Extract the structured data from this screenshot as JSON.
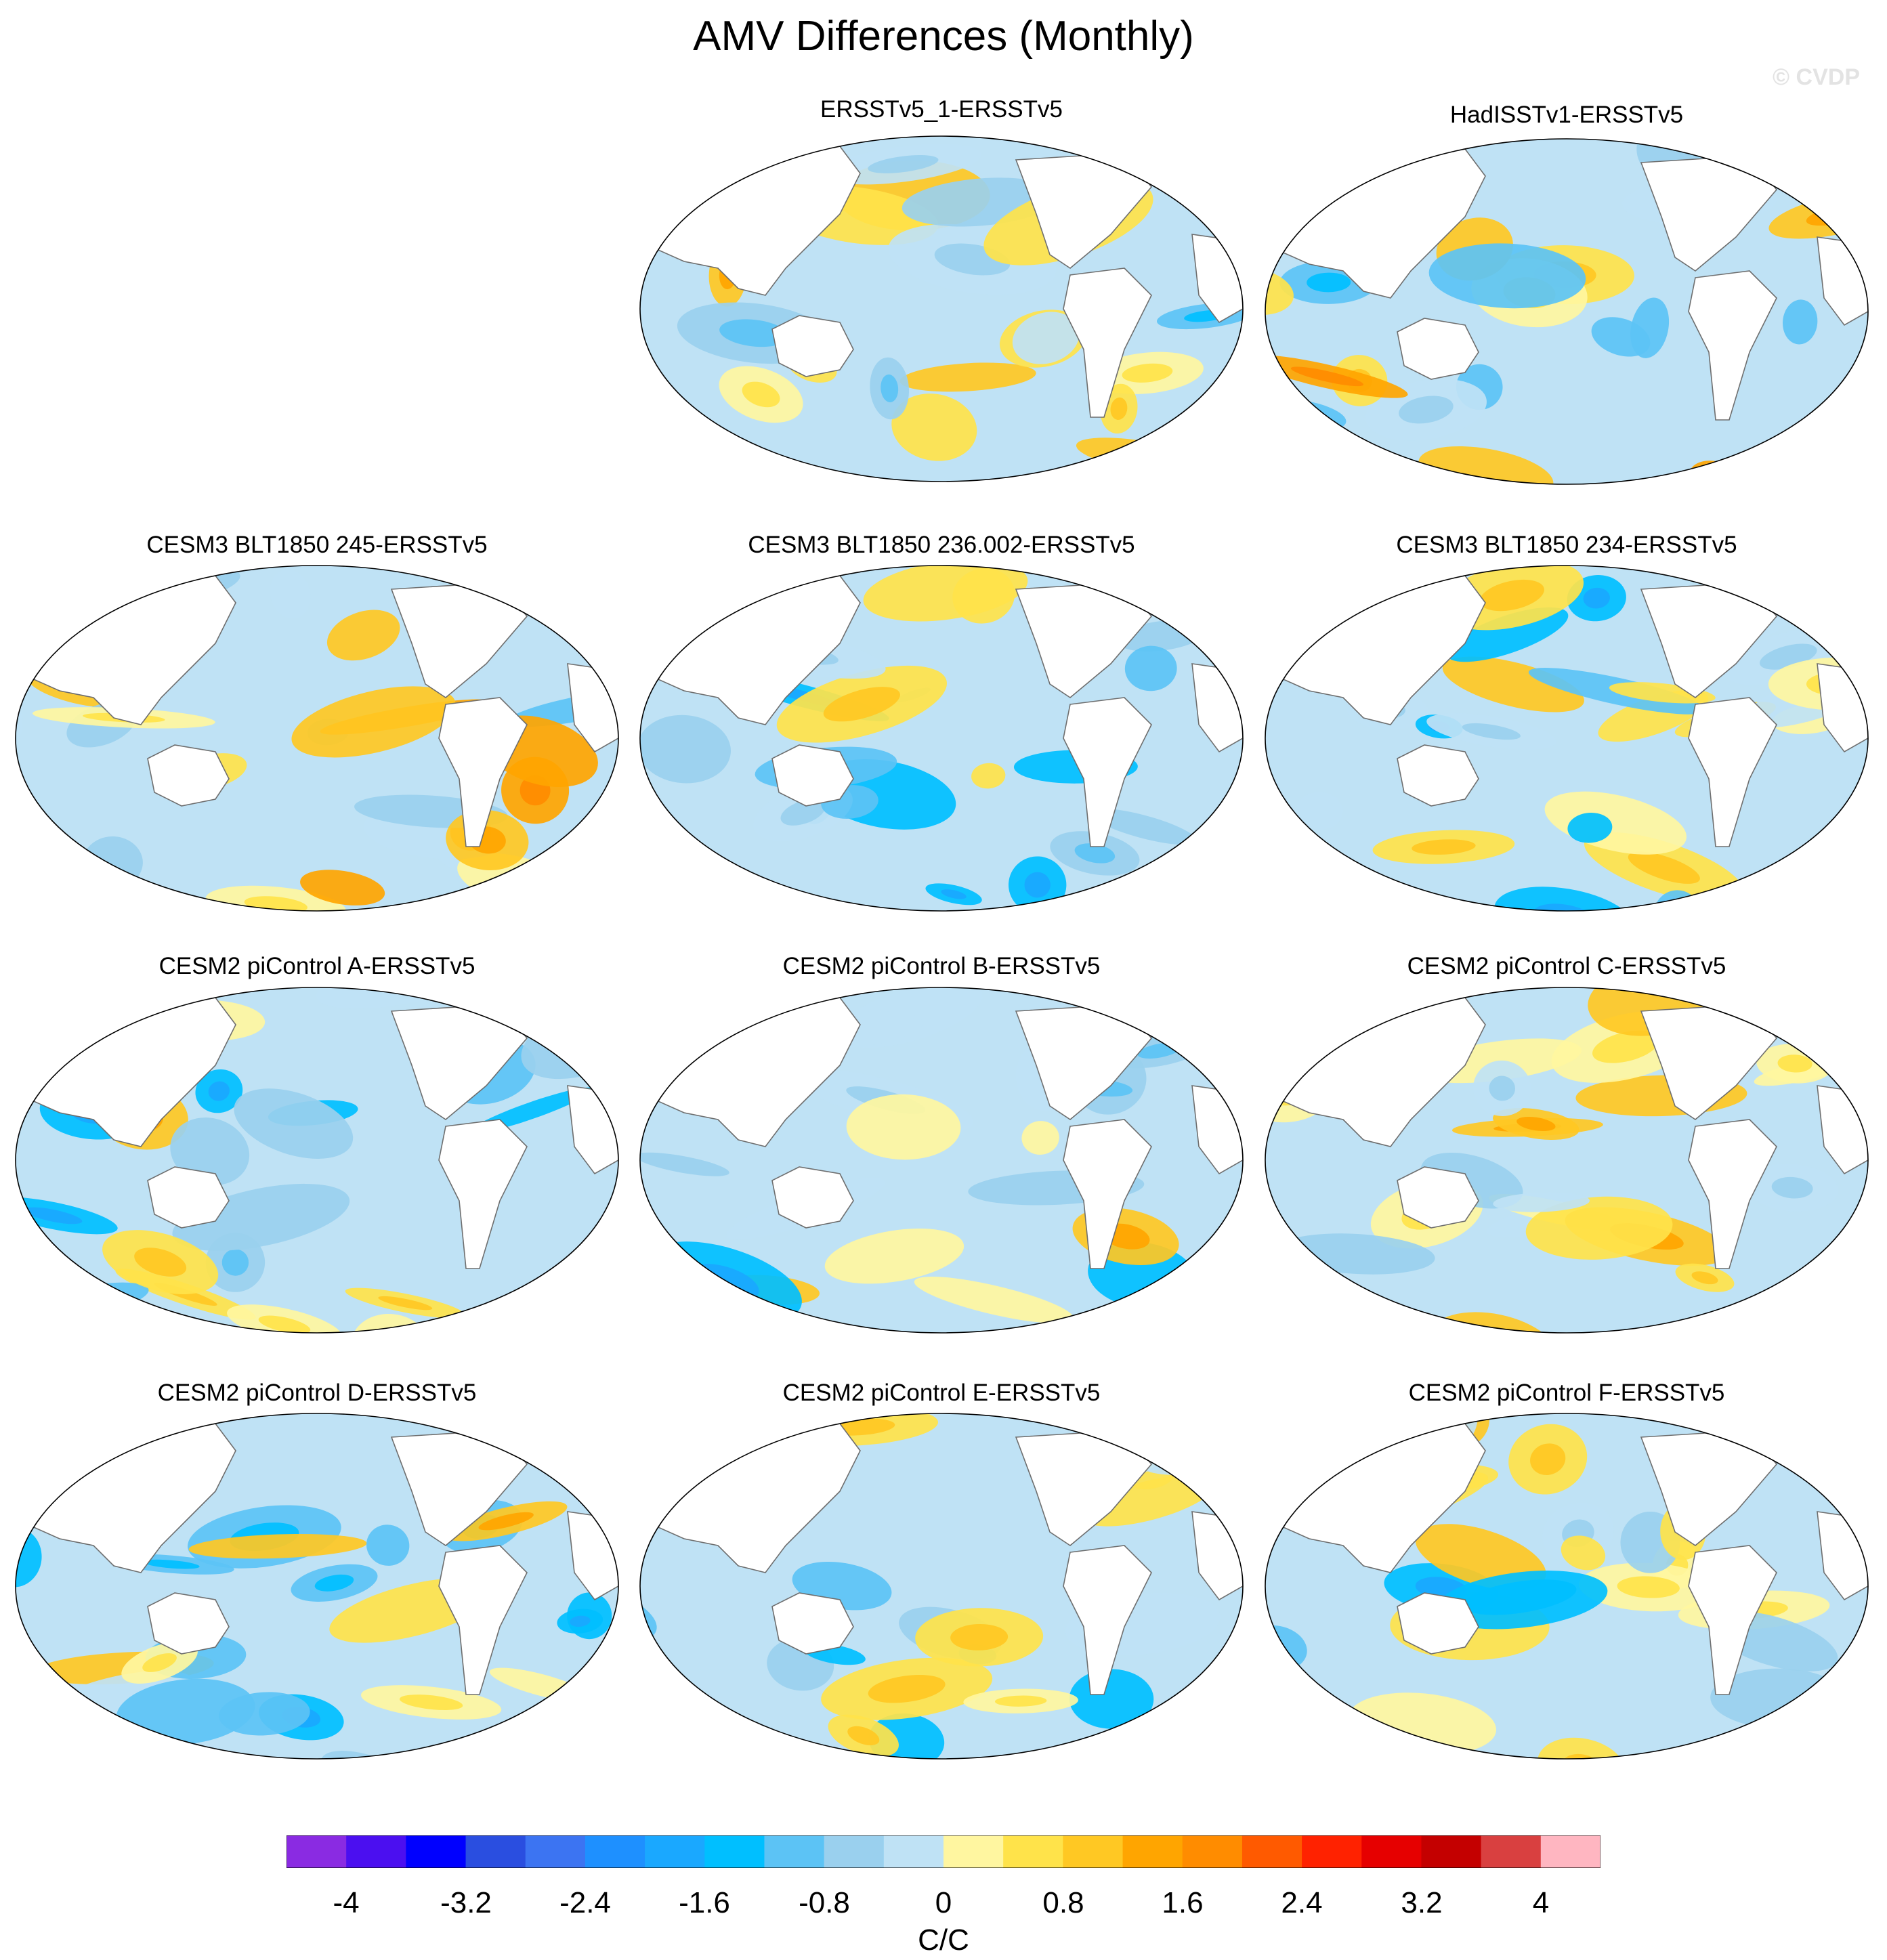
{
  "title": "AMV Differences (Monthly)",
  "watermark": "© CVDP",
  "panels": [
    {
      "label": "ERSSTv5_1-ERSSTv5"
    },
    {
      "label": "HadISSTv1-ERSSTv5"
    },
    {
      "label": "CESM3 BLT1850 245-ERSSTv5"
    },
    {
      "label": "CESM3 BLT1850 236.002-ERSSTv5"
    },
    {
      "label": "CESM3 BLT1850 234-ERSSTv5"
    },
    {
      "label": "CESM2 piControl A-ERSSTv5"
    },
    {
      "label": "CESM2 piControl B-ERSSTv5"
    },
    {
      "label": "CESM2 piControl C-ERSSTv5"
    },
    {
      "label": "CESM2 piControl D-ERSSTv5"
    },
    {
      "label": "CESM2 piControl E-ERSSTv5"
    },
    {
      "label": "CESM2 piControl F-ERSSTv5"
    }
  ],
  "colorbar": {
    "colors": [
      "#8a2be2",
      "#4b0ff0",
      "#0000ff",
      "#2a4ee0",
      "#3c74f2",
      "#1e90ff",
      "#1aa8ff",
      "#00bfff",
      "#5cc3f5",
      "#9ad0ee",
      "#bfe2f5",
      "#fff6a0",
      "#ffe34a",
      "#ffc823",
      "#ffa500",
      "#ff8c00",
      "#ff5a00",
      "#ff2200",
      "#e60000",
      "#c40000",
      "#d94040",
      "#ffb6c1"
    ],
    "labels": [
      "-4",
      "-3.2",
      "-2.4",
      "-1.6",
      "-0.8",
      "0",
      "0.8",
      "1.6",
      "2.4",
      "3.2",
      "4"
    ],
    "units": "C/C"
  }
}
